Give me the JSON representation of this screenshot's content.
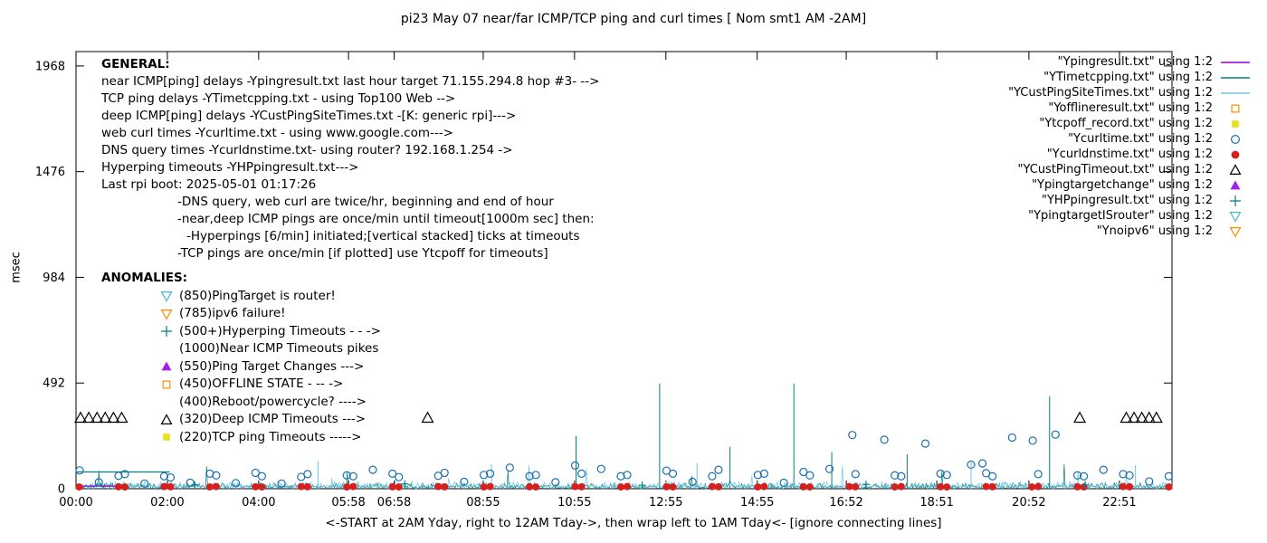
{
  "title": "pi23 May 07  near/far ICMP/TCP ping and curl times [ Nom smt1 AM -2AM]",
  "y_axis": {
    "label": "msec",
    "ticks": [
      0,
      492,
      984,
      1476,
      1968
    ]
  },
  "x_axis": {
    "label": "<-START at 2AM Yday, right to 12AM Tday->, then wrap left to 1AM Tday<- [ignore connecting lines]",
    "ticks": [
      {
        "h": 0,
        "label": "00:00"
      },
      {
        "h": 2,
        "label": "02:00"
      },
      {
        "h": 4,
        "label": "04:00"
      },
      {
        "h": 5.967,
        "label": "05:58"
      },
      {
        "h": 6.967,
        "label": "06:58"
      },
      {
        "h": 8.917,
        "label": "08:55"
      },
      {
        "h": 10.917,
        "label": "10:55"
      },
      {
        "h": 12.917,
        "label": "12:55"
      },
      {
        "h": 14.917,
        "label": "14:55"
      },
      {
        "h": 16.867,
        "label": "16:52"
      },
      {
        "h": 18.85,
        "label": "18:51"
      },
      {
        "h": 20.867,
        "label": "20:52"
      },
      {
        "h": 22.85,
        "label": "22:51"
      }
    ]
  },
  "general": {
    "heading": "GENERAL:",
    "lines": [
      {
        "indent": 0,
        "text": "near ICMP[ping] delays -Ypingresult.txt last hour target 71.155.294.8 hop #3- -->"
      },
      {
        "indent": 0,
        "text": "TCP ping delays -YTimetcpping.txt - using Top100 Web -->"
      },
      {
        "indent": 0,
        "text": "deep ICMP[ping] delays -YCustPingSiteTimes.txt -[K: generic rpi]--->"
      },
      {
        "indent": 0,
        "text": "web curl times -Ycurltime.txt - using www.google.com--->"
      },
      {
        "indent": 0,
        "text": "DNS query times -Ycurldnstime.txt- using router? 192.168.1.254 ->"
      },
      {
        "indent": 0,
        "text": "Hyperping timeouts -YHPpingresult.txt--->"
      },
      {
        "indent": 0,
        "text": "Last rpi boot: 2025-05-01 01:17:26"
      },
      {
        "indent": 1,
        "text": "-DNS query, web curl are twice/hr, beginning and end of hour"
      },
      {
        "indent": 1,
        "text": "-near,deep ICMP pings are once/min until timeout[1000m sec] then:"
      },
      {
        "indent": 2,
        "text": "-Hyperpings [6/min] initiated;[vertical stacked] ticks at timeouts"
      },
      {
        "indent": 1,
        "text": "-TCP pings are once/min [if plotted] use Ytcpoff for timeouts]"
      }
    ]
  },
  "anomalies": {
    "heading": "ANOMALIES:",
    "items": [
      {
        "marker": "triangle-down-open",
        "color": "#49b6d6",
        "text": "(850)PingTarget is router!"
      },
      {
        "marker": "triangle-down-open",
        "color": "#ff8c00",
        "text": "(785)ipv6 failure!"
      },
      {
        "marker": "plus",
        "color": "#008080",
        "text": "(500+)Hyperping Timeouts - - ->"
      },
      {
        "marker": null,
        "color": null,
        "text": "(1000)Near ICMP Timeouts pikes"
      },
      {
        "marker": "triangle-filled",
        "color": "#a020f0",
        "text": "(550)Ping Target Changes --->"
      },
      {
        "marker": "square-open",
        "color": "#ff8c00",
        "text": "(450)OFFLINE STATE - -- ->"
      },
      {
        "marker": null,
        "color": null,
        "text": "(400)Reboot/powercycle? ---->"
      },
      {
        "marker": "triangle-open",
        "color": "#000000",
        "text": "(320)Deep ICMP Timeouts --->"
      },
      {
        "marker": "square-filled",
        "color": "#e8e120",
        "text": "(220)TCP ping Timeouts ----->"
      }
    ]
  },
  "legend": [
    {
      "label": "\"Ypingresult.txt\" using 1:2",
      "marker": "line",
      "color": "#9400d3"
    },
    {
      "label": "\"YTimetcpping.txt\" using 1:2",
      "marker": "line",
      "color": "#008080"
    },
    {
      "label": "\"YCustPingSiteTimes.txt\" using 1:2",
      "marker": "line",
      "color": "#6ec6e4"
    },
    {
      "label": "\"Yofflineresult.txt\" using 1:2",
      "marker": "square-open",
      "color": "#ff8c00"
    },
    {
      "label": "\"Ytcpoff_record.txt\" using 1:2",
      "marker": "square-filled",
      "color": "#e8e120"
    },
    {
      "label": "\"Ycurltime.txt\" using 1:2",
      "marker": "circle-open",
      "color": "#1b6fae"
    },
    {
      "label": "\"Ycurldnstime.txt\" using 1:2",
      "marker": "circle-filled",
      "color": "#d62020"
    },
    {
      "label": "\"YCustPingTimeout.txt\" using 1:2",
      "marker": "triangle-open",
      "color": "#000000"
    },
    {
      "label": "\"Ypingtargetchange\" using 1:2",
      "marker": "triangle-filled",
      "color": "#a020f0"
    },
    {
      "label": "\"YHPpingresult.txt\" using 1:2",
      "marker": "plus",
      "color": "#008080"
    },
    {
      "label": "\"YpingtargetISrouter\" using 1:2",
      "marker": "triangle-down-open",
      "color": "#49b6d6"
    },
    {
      "label": "\"Ynoipv6\" using 1:2",
      "marker": "triangle-down-open",
      "color": "#ff8c00"
    }
  ],
  "chart_data": {
    "type": "scatter",
    "x_domain": [
      0,
      24
    ],
    "y_domain": [
      0,
      2035
    ],
    "y_ticks": [
      0,
      492,
      984,
      1476,
      1968
    ],
    "noise_series": [
      {
        "name": "YTimetcpping.txt",
        "color": "#008080",
        "base": 26,
        "burst": 110,
        "seed": 7,
        "spikes": [
          {
            "h": 10.95,
            "v": 245
          },
          {
            "h": 12.78,
            "v": 490
          },
          {
            "h": 14.32,
            "v": 195
          },
          {
            "h": 15.72,
            "v": 490
          },
          {
            "h": 16.55,
            "v": 170
          },
          {
            "h": 18.2,
            "v": 160
          },
          {
            "h": 21.32,
            "v": 430
          }
        ]
      },
      {
        "name": "YCustPingSiteTimes.txt",
        "color": "#6ec6e4",
        "base": 34,
        "burst": 95,
        "seed": 13,
        "spikes": [
          {
            "h": 5.3,
            "v": 130
          },
          {
            "h": 9.1,
            "v": 115
          },
          {
            "h": 13.6,
            "v": 120
          },
          {
            "h": 19.6,
            "v": 125
          },
          {
            "h": 23.2,
            "v": 110
          }
        ]
      }
    ],
    "line_series": [
      {
        "name": "Ypingresult.txt",
        "color": "#9400d3",
        "points": [
          [
            0.02,
            12
          ],
          [
            1.0,
            12
          ]
        ]
      },
      {
        "name": "YTimetcpping.txt early level",
        "color": "#008080",
        "points": [
          [
            0.02,
            78
          ],
          [
            2.05,
            78
          ]
        ]
      }
    ],
    "scatter_series": [
      {
        "name": "Ycurltime.txt",
        "marker": "circle-open",
        "color": "#1b6fae",
        "size": 5,
        "points": [
          [
            0.08,
            85
          ],
          [
            0.5,
            30
          ],
          [
            0.93,
            60
          ],
          [
            1.07,
            68
          ],
          [
            1.5,
            24
          ],
          [
            1.93,
            58
          ],
          [
            2.07,
            52
          ],
          [
            2.5,
            28
          ],
          [
            2.93,
            70
          ],
          [
            3.07,
            62
          ],
          [
            3.5,
            26
          ],
          [
            3.93,
            74
          ],
          [
            4.07,
            58
          ],
          [
            4.5,
            24
          ],
          [
            4.93,
            55
          ],
          [
            5.07,
            68
          ],
          [
            5.93,
            62
          ],
          [
            6.07,
            58
          ],
          [
            6.5,
            88
          ],
          [
            6.93,
            70
          ],
          [
            7.07,
            54
          ],
          [
            7.93,
            60
          ],
          [
            8.07,
            74
          ],
          [
            8.5,
            32
          ],
          [
            8.93,
            64
          ],
          [
            9.07,
            70
          ],
          [
            9.5,
            98
          ],
          [
            9.93,
            58
          ],
          [
            10.07,
            64
          ],
          [
            10.5,
            30
          ],
          [
            10.93,
            108
          ],
          [
            11.07,
            70
          ],
          [
            11.5,
            92
          ],
          [
            11.93,
            58
          ],
          [
            12.07,
            64
          ],
          [
            12.93,
            84
          ],
          [
            13.07,
            70
          ],
          [
            13.5,
            32
          ],
          [
            13.93,
            58
          ],
          [
            14.07,
            88
          ],
          [
            14.93,
            64
          ],
          [
            15.07,
            70
          ],
          [
            15.5,
            28
          ],
          [
            15.93,
            78
          ],
          [
            16.07,
            62
          ],
          [
            16.5,
            92
          ],
          [
            17.0,
            250
          ],
          [
            17.07,
            68
          ],
          [
            17.7,
            228
          ],
          [
            17.93,
            62
          ],
          [
            18.07,
            58
          ],
          [
            18.6,
            210
          ],
          [
            18.93,
            70
          ],
          [
            19.07,
            64
          ],
          [
            19.6,
            112
          ],
          [
            19.85,
            118
          ],
          [
            19.93,
            72
          ],
          [
            20.07,
            58
          ],
          [
            20.5,
            238
          ],
          [
            20.95,
            224
          ],
          [
            21.07,
            68
          ],
          [
            21.45,
            252
          ],
          [
            21.93,
            62
          ],
          [
            22.07,
            58
          ],
          [
            22.5,
            88
          ],
          [
            22.93,
            68
          ],
          [
            23.07,
            62
          ],
          [
            23.5,
            34
          ],
          [
            23.93,
            58
          ]
        ]
      },
      {
        "name": "Ycurldnstime.txt",
        "marker": "circle-filled",
        "color": "#d62020",
        "size": 5,
        "points": [
          [
            0.07,
            8
          ],
          [
            0.93,
            9
          ],
          [
            1.07,
            8
          ],
          [
            1.93,
            10
          ],
          [
            2.07,
            9
          ],
          [
            2.93,
            8
          ],
          [
            3.07,
            10
          ],
          [
            3.93,
            9
          ],
          [
            4.07,
            8
          ],
          [
            4.93,
            10
          ],
          [
            5.07,
            9
          ],
          [
            5.93,
            8
          ],
          [
            6.07,
            10
          ],
          [
            6.93,
            9
          ],
          [
            7.07,
            8
          ],
          [
            7.93,
            10
          ],
          [
            8.07,
            9
          ],
          [
            8.93,
            8
          ],
          [
            9.07,
            10
          ],
          [
            9.93,
            9
          ],
          [
            10.07,
            8
          ],
          [
            10.93,
            10
          ],
          [
            11.07,
            9
          ],
          [
            11.93,
            8
          ],
          [
            12.07,
            10
          ],
          [
            12.93,
            9
          ],
          [
            13.07,
            8
          ],
          [
            13.93,
            10
          ],
          [
            14.07,
            9
          ],
          [
            14.93,
            8
          ],
          [
            15.07,
            10
          ],
          [
            15.93,
            9
          ],
          [
            16.07,
            8
          ],
          [
            16.93,
            10
          ],
          [
            17.07,
            9
          ],
          [
            17.93,
            8
          ],
          [
            18.07,
            10
          ],
          [
            18.93,
            9
          ],
          [
            19.07,
            8
          ],
          [
            19.93,
            10
          ],
          [
            20.07,
            9
          ],
          [
            20.93,
            8
          ],
          [
            21.07,
            10
          ],
          [
            21.93,
            9
          ],
          [
            22.07,
            8
          ],
          [
            22.93,
            10
          ],
          [
            23.07,
            9
          ],
          [
            23.93,
            8
          ]
        ]
      },
      {
        "name": "YCustPingTimeout.txt",
        "marker": "triangle-open",
        "color": "#000000",
        "size": 6,
        "points": [
          [
            0.1,
            330
          ],
          [
            0.28,
            330
          ],
          [
            0.46,
            330
          ],
          [
            0.64,
            330
          ],
          [
            0.82,
            330
          ],
          [
            1.0,
            330
          ],
          [
            7.7,
            330
          ],
          [
            21.98,
            330
          ],
          [
            23.0,
            330
          ],
          [
            23.17,
            330
          ],
          [
            23.34,
            330
          ],
          [
            23.5,
            330
          ],
          [
            23.66,
            330
          ]
        ]
      },
      {
        "name": "YHPpingresult.txt",
        "marker": "plus",
        "color": "#008080",
        "size": 4,
        "points": [
          [
            2.6,
            18
          ],
          [
            7.2,
            22
          ],
          [
            12.4,
            16
          ],
          [
            17.3,
            20
          ],
          [
            22.1,
            18
          ]
        ]
      }
    ]
  }
}
